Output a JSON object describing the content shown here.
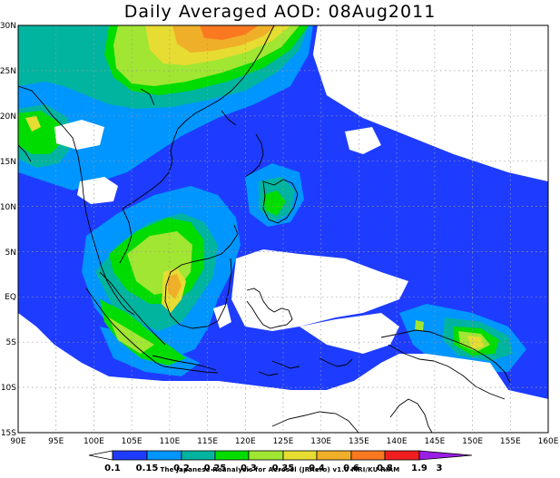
{
  "title": "Daily Averaged AOD: 08Aug2011",
  "credit": "The Japanese Reanalysis for Aerosol (JRAero) v1.0 MRI/KU RIAM",
  "map": {
    "lon_range": [
      90,
      160
    ],
    "lat_range": [
      -15,
      30
    ],
    "lat_ticks": [
      "30N",
      "25N",
      "20N",
      "15N",
      "10N",
      "5N",
      "EQ",
      "5S",
      "10S",
      "15S"
    ],
    "lon_ticks": [
      "90E",
      "95E",
      "100E",
      "105E",
      "110E",
      "115E",
      "120E",
      "125E",
      "130E",
      "135E",
      "140E",
      "145E",
      "150E",
      "155E",
      "160E"
    ]
  },
  "colorbar": {
    "labels": [
      "0.1",
      "0.15",
      "0.2",
      "0.25",
      "0.3",
      "0.35",
      "0.4",
      "0.6",
      "0.8",
      "1.9",
      "3"
    ],
    "colors": [
      "#ffffff",
      "#1e3cff",
      "#0096ff",
      "#00b4a0",
      "#00dc00",
      "#a0e632",
      "#e6dc32",
      "#f0af28",
      "#fa7820",
      "#f01e1e",
      "#9b1ee6"
    ]
  },
  "palette": {
    "blue": "#1e3cff",
    "lightblue": "#0096ff",
    "teal": "#00b4a0",
    "green": "#00dc00",
    "lime": "#a0e632",
    "yellow": "#e6dc32",
    "orange": "#f0af28",
    "darkorange": "#fa7820"
  }
}
